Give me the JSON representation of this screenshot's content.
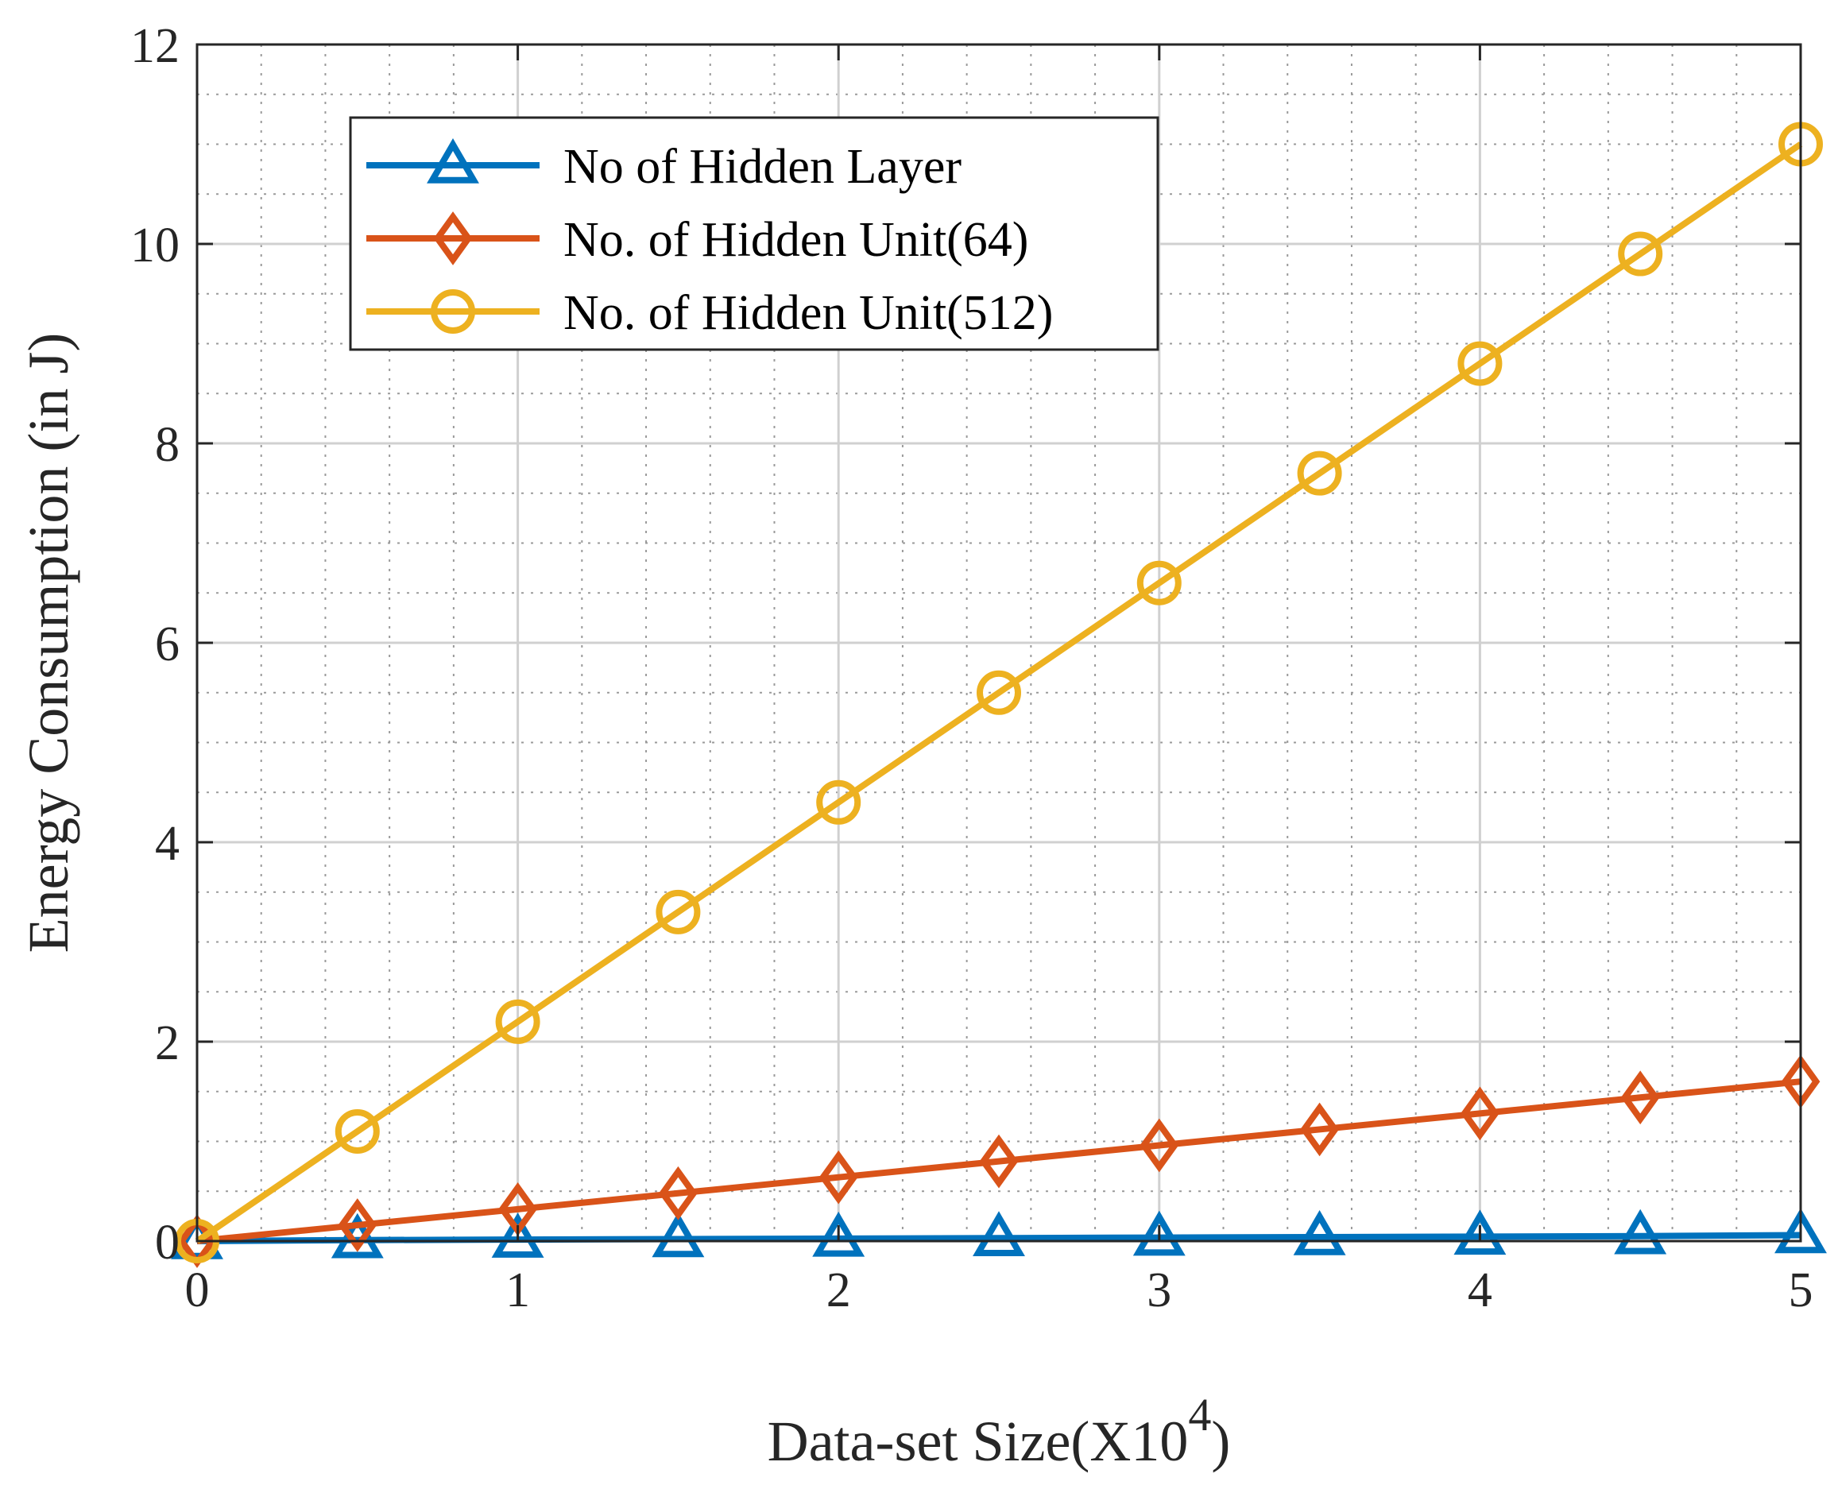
{
  "chart_data": {
    "type": "line",
    "xlabel": "Data-set Size(X10",
    "xlabel_exponent": "4",
    "xlabel_close": ")",
    "ylabel": "Energy Consumption (in J)",
    "xlim": [
      0,
      5
    ],
    "ylim": [
      0,
      12
    ],
    "xticks": [
      0,
      1,
      2,
      3,
      4,
      5
    ],
    "yticks": [
      0,
      2,
      4,
      6,
      8,
      10,
      12
    ],
    "xtick_labels": [
      "0",
      "1",
      "2",
      "3",
      "4",
      "5"
    ],
    "ytick_labels": [
      "0",
      "2",
      "4",
      "6",
      "8",
      "10",
      "12"
    ],
    "grid": true,
    "minor_grid": true,
    "legend_position": "top-left",
    "x": [
      0,
      0.5,
      1,
      1.5,
      2,
      2.5,
      3,
      3.5,
      4,
      4.5,
      5
    ],
    "series": [
      {
        "name": "No of Hidden Layer",
        "color": "#0072BD",
        "marker": "triangle",
        "values": [
          0,
          0.01,
          0.015,
          0.02,
          0.025,
          0.03,
          0.035,
          0.04,
          0.045,
          0.05,
          0.06
        ]
      },
      {
        "name": "No. of Hidden Unit(64)",
        "color": "#D95319",
        "marker": "diamond",
        "values": [
          0,
          0.16,
          0.32,
          0.48,
          0.64,
          0.8,
          0.96,
          1.12,
          1.28,
          1.44,
          1.6
        ]
      },
      {
        "name": "No. of Hidden Unit(512)",
        "color": "#EDB120",
        "marker": "circle",
        "values": [
          0,
          1.1,
          2.2,
          3.3,
          4.4,
          5.5,
          6.6,
          7.7,
          8.8,
          9.9,
          11.0
        ]
      }
    ]
  }
}
